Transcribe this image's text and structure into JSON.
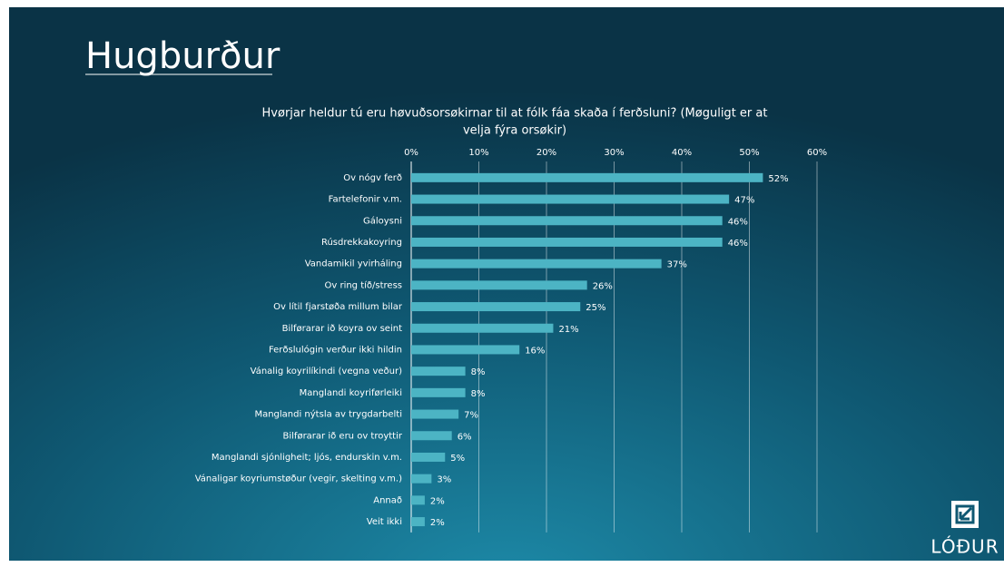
{
  "heading": "Hugburður",
  "logo": "LÓÐUR",
  "chart_data": {
    "type": "bar",
    "orientation": "horizontal",
    "title": [
      "Hvørjar heldur tú eru høvuðsorsøkirnar til at fólk fáa skaða í ferðsluni? (Møguligt er at",
      "velja fýra orsøkir)"
    ],
    "categories": [
      "Ov nógv ferð",
      "Fartelefonir v.m.",
      "Gáloysni",
      "Rúsdrekkakoyring",
      "Vandamikil yvirháling",
      "Ov ring tíð/stress",
      "Ov lítil fjarstøða millum bilar",
      "Bilførarar ið koyra ov seint",
      "Ferðslulógin verður ikki hildin",
      "Vánalig koyrilíkindi (vegna veður)",
      "Manglandi koyriførleiki",
      "Manglandi nýtsla av trygdarbelti",
      "Bilførarar ið eru ov troyttir",
      "Manglandi sjónligheit; ljós, endurskin v.m.",
      "Vánaligar koyriumstøður (vegir, skelting v.m.)",
      "Annað",
      "Veit ikki"
    ],
    "values": [
      52,
      47,
      46,
      46,
      37,
      26,
      25,
      21,
      16,
      8,
      8,
      7,
      6,
      5,
      3,
      2,
      2
    ],
    "value_labels": [
      "52%",
      "47%",
      "46%",
      "46%",
      "37%",
      "26%",
      "25%",
      "21%",
      "16%",
      "8%",
      "8%",
      "7%",
      "6%",
      "5%",
      "3%",
      "2%",
      "2%"
    ],
    "color": "#4cb4c4",
    "xlim": [
      0,
      60
    ],
    "xticks": [
      {
        "value": 0,
        "label": "0%"
      },
      {
        "value": 10,
        "label": "10%"
      },
      {
        "value": 20,
        "label": "20%"
      },
      {
        "value": 30,
        "label": "30%"
      },
      {
        "value": 40,
        "label": "40%"
      },
      {
        "value": 50,
        "label": "50%"
      },
      {
        "value": 60,
        "label": "60%"
      }
    ],
    "grid": true
  }
}
